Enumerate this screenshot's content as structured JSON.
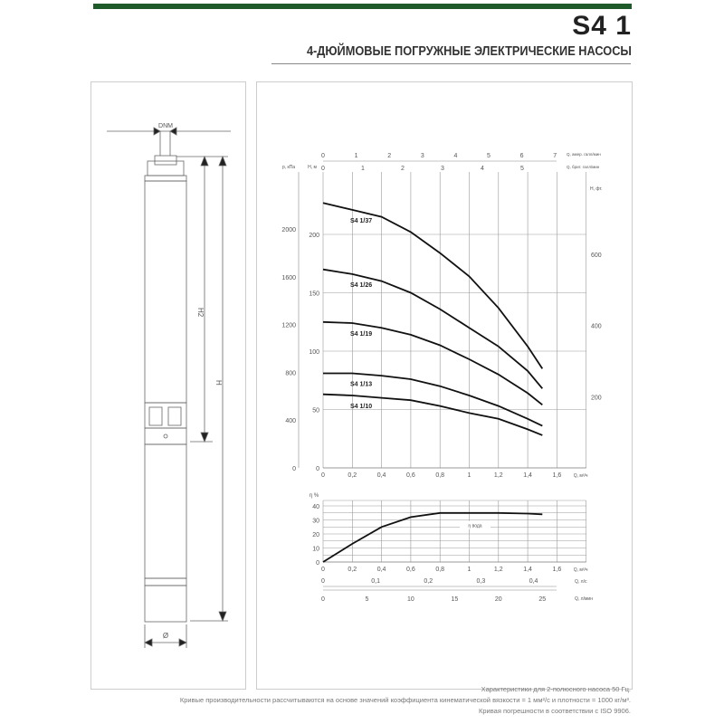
{
  "header": {
    "title": "S4 1",
    "subtitle": "4-ДЮЙМОВЫЕ ПОГРУЖНЫЕ ЭЛЕКТРИЧЕСКИЕ НАСОСЫ",
    "accent_color": "#1e5a2a"
  },
  "drawing": {
    "dnm_label": "DNM",
    "h2_label": "H2",
    "h_label": "H",
    "diameter_label": "Ø"
  },
  "chart_data": [
    {
      "type": "line",
      "title": "",
      "xlabel": "Q, м³/ч",
      "ylabel": "H, м",
      "ylabel_left": "p, кПа",
      "ylabel_right": "H, фт.",
      "top_axis_1_label": "Q, амер. галл/мин",
      "top_axis_2_label": "Q, брит. галл/мин",
      "xlim": [
        0,
        1.8
      ],
      "ylim": [
        0,
        250
      ],
      "x_ticks": [
        "0",
        "0,2",
        "0,4",
        "0,6",
        "0,8",
        "1",
        "1,2",
        "1,4",
        "1,6"
      ],
      "y_ticks": [
        "0",
        "50",
        "100",
        "150",
        "200"
      ],
      "kpa_ticks": [
        "0",
        "400",
        "800",
        "1200",
        "1600",
        "2000"
      ],
      "ft_ticks": [
        "200",
        "400",
        "600"
      ],
      "us_gpm_ticks": [
        "0",
        "1",
        "2",
        "3",
        "4",
        "5",
        "6",
        "7"
      ],
      "imp_gpm_ticks": [
        "0",
        "1",
        "2",
        "3",
        "4",
        "5"
      ],
      "grid": true,
      "x": [
        0,
        0.2,
        0.4,
        0.6,
        0.8,
        1.0,
        1.2,
        1.4,
        1.5
      ],
      "series": [
        {
          "name": "S4 1/37",
          "values": [
            227,
            221,
            215,
            202,
            184,
            164,
            137,
            104,
            85
          ]
        },
        {
          "name": "S4 1/26",
          "values": [
            170,
            166,
            160,
            150,
            136,
            120,
            104,
            83,
            68
          ]
        },
        {
          "name": "S4 1/19",
          "values": [
            125,
            124,
            120,
            114,
            105,
            93,
            80,
            64,
            54
          ]
        },
        {
          "name": "S4 1/13",
          "values": [
            81,
            81,
            79,
            76,
            70,
            62,
            53,
            42,
            36
          ]
        },
        {
          "name": "S4 1/10",
          "values": [
            63,
            62,
            60,
            58,
            53,
            47,
            42,
            33,
            28
          ]
        }
      ]
    },
    {
      "type": "line",
      "title": "",
      "xlabel": "Q, м³/ч",
      "ylabel": "η %",
      "bottom_axis_1_label": "Q, л/с",
      "bottom_axis_2_label": "Q, л/мин",
      "xlim": [
        0,
        1.8
      ],
      "ylim": [
        0,
        40
      ],
      "x_ticks": [
        "0",
        "0,2",
        "0,4",
        "0,6",
        "0,8",
        "1",
        "1,2",
        "1,4",
        "1,6"
      ],
      "y_ticks": [
        "0",
        "10",
        "20",
        "30",
        "40"
      ],
      "ls_ticks": [
        "0",
        "0,1",
        "0,2",
        "0,3",
        "0,4"
      ],
      "lmin_ticks": [
        "0",
        "5",
        "10",
        "15",
        "20",
        "25"
      ],
      "grid": true,
      "annotation": "η вода",
      "x": [
        0,
        0.2,
        0.4,
        0.6,
        0.8,
        1.0,
        1.2,
        1.4,
        1.5
      ],
      "series": [
        {
          "values": [
            0,
            13,
            25,
            32,
            35,
            35,
            35,
            34.5,
            34
          ]
        }
      ]
    }
  ],
  "footer": {
    "line1": "Характеристики для 2-полюсного насоса 50 Гц.",
    "line2": "Кривые производительности рассчитываются на основе значений коэффициента кинематической вязкости = 1 мм²/с и плотности = 1000 кг/м³.",
    "line3": "Кривая погрешности в соответствии с ISO 9906."
  }
}
